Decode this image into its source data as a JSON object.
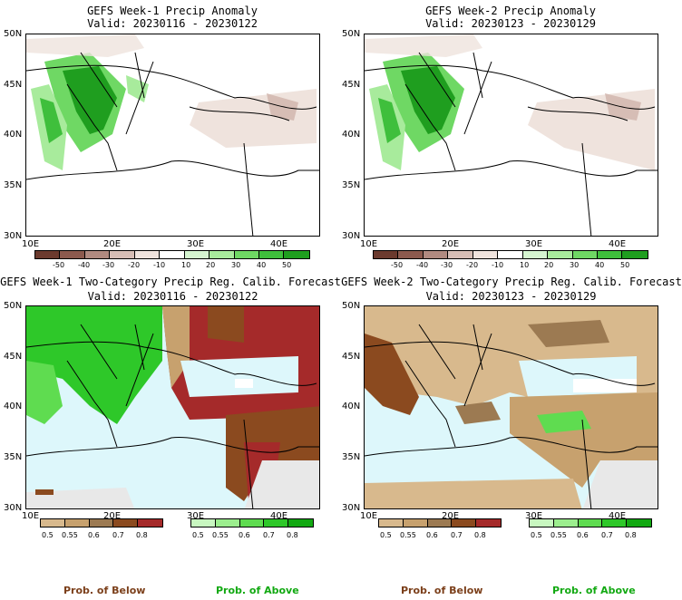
{
  "panels": {
    "tl": {
      "title": "GEFS Week-1 Precip Anomaly",
      "valid": "Valid: 20230116 - 20230122"
    },
    "tr": {
      "title": "GEFS Week-2 Precip Anomaly",
      "valid": "Valid: 20230123 - 20230129"
    },
    "bl": {
      "title": "GEFS Week-1 Two-Category Precip Reg. Calib. Forecast",
      "valid": "Valid: 20230116 - 20230122"
    },
    "br": {
      "title": "GEFS Week-2 Two-Category Precip Reg. Calib. Forecast",
      "valid": "Valid: 20230123 - 20230129"
    }
  },
  "lat_labels": [
    "50N",
    "45N",
    "40N",
    "35N",
    "30N"
  ],
  "lon_labels": [
    "10E",
    "20E",
    "30E",
    "40E"
  ],
  "anomaly_colorbar": {
    "labels": [
      "-50",
      "-40",
      "-30",
      "-20",
      "-10",
      "10",
      "20",
      "30",
      "40",
      "50"
    ],
    "colors": [
      "#6b3a2e",
      "#8c5a4e",
      "#b08a80",
      "#d6bdb5",
      "#efe3dd",
      "#ffffff",
      "#d5f5d0",
      "#a8eb9c",
      "#6fd864",
      "#3fbf3c",
      "#1f9e1f"
    ]
  },
  "below_colorbar": {
    "labels": [
      "0.5",
      "0.55",
      "0.6",
      "0.7",
      "0.8"
    ],
    "colors": [
      "#d8b98d",
      "#c7a16e",
      "#9c7a52",
      "#8b4a1f",
      "#a52a2a"
    ]
  },
  "above_colorbar": {
    "labels": [
      "0.5",
      "0.55",
      "0.6",
      "0.7",
      "0.8"
    ],
    "colors": [
      "#c8f7c0",
      "#9cee8e",
      "#5fdc50",
      "#2ec829",
      "#12a912"
    ]
  },
  "prob_labels": {
    "below": "Prob. of Below",
    "above": "Prob. of Above"
  },
  "colors": {
    "sea": "#ddf7fb",
    "land_gray": "#e8e8e8",
    "below_text": "#7b3f1a",
    "above_text": "#12a912"
  }
}
